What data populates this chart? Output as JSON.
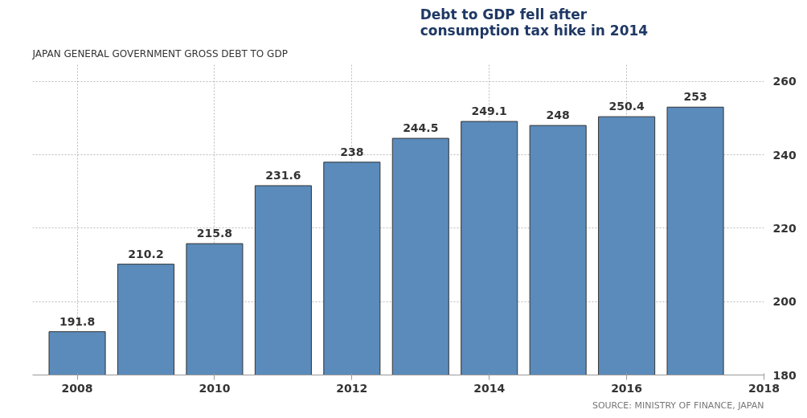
{
  "chart_data": {
    "type": "bar",
    "title": "JAPAN GENERAL GOVERNMENT GROSS DEBT TO GDP",
    "x": [
      2008,
      2009,
      2010,
      2011,
      2012,
      2013,
      2014,
      2015,
      2016,
      2017
    ],
    "values": [
      191.8,
      210.2,
      215.8,
      231.6,
      238,
      244.5,
      249.1,
      248,
      250.4,
      253
    ],
    "color": "#5a8bbb",
    "xlim": [
      2007.35,
      2018
    ],
    "xticks": [
      2008,
      2010,
      2012,
      2014,
      2016,
      2018
    ],
    "ylim": [
      180,
      265
    ],
    "yticks": [
      180,
      200,
      220,
      240,
      260
    ],
    "grid": true,
    "data_labels": true,
    "annotations": [
      "Debt to GDP fell after\nconsumption  tax hike in 2014",
      "SOURCE: MINISTRY OF FINANCE, JAPAN"
    ]
  }
}
